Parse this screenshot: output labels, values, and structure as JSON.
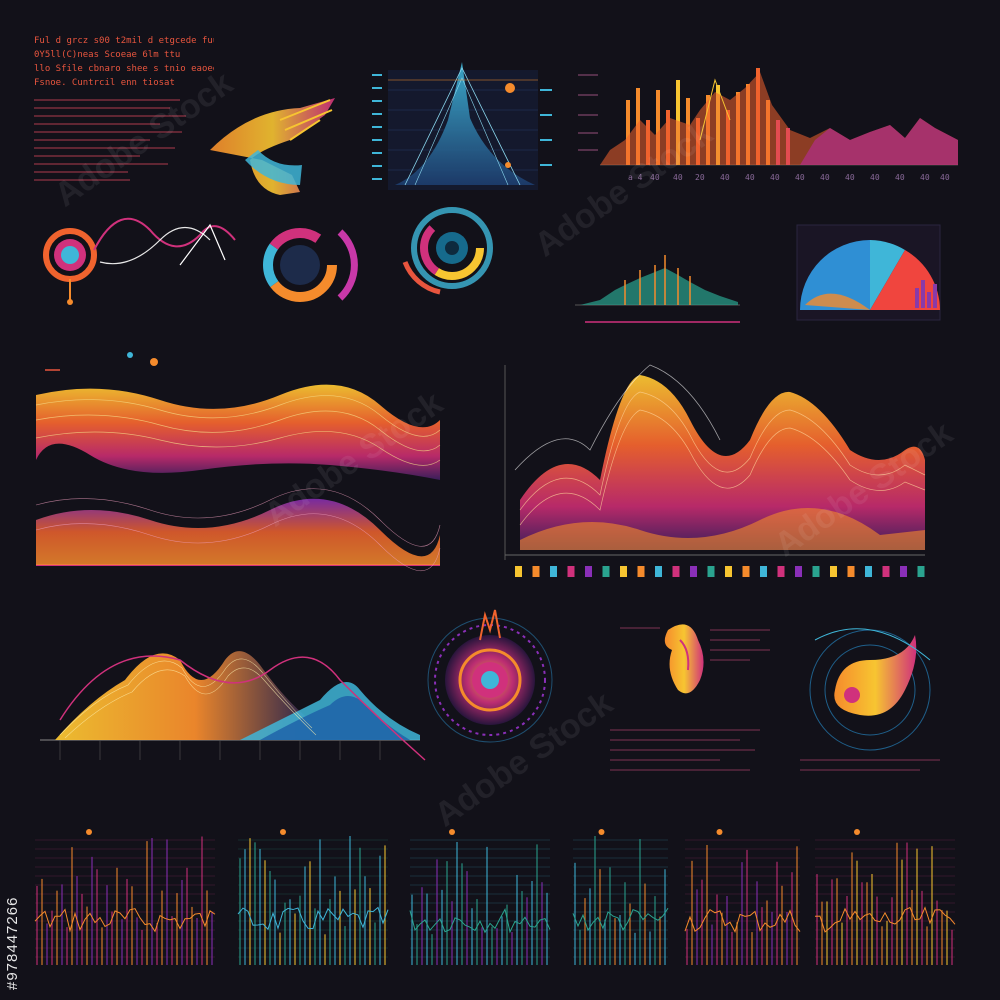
{
  "header": {
    "line1": "Ful d grcz s00 t2mil d etgcede fuucoet",
    "line2": "0Y5ll(C)neas Scoeae 6lm ttu",
    "line3": "llo Sfile cbnaro shee s tnio eaoeee",
    "line4": "Fsnoe. Cuntrcil enn tiosat"
  },
  "watermark": {
    "text": "Adobe Stock",
    "stock_id": "#978447266"
  },
  "colors": {
    "background": "#121119",
    "orange": "#f58b2c",
    "yellow": "#f7c531",
    "magenta": "#d0317c",
    "purple": "#8a2fb8",
    "cyan": "#3fb6d8",
    "red": "#e8553e"
  },
  "panels": {
    "top_bar_label": "9 9 9 9 9 9 9",
    "bottom_squares": 24
  }
}
